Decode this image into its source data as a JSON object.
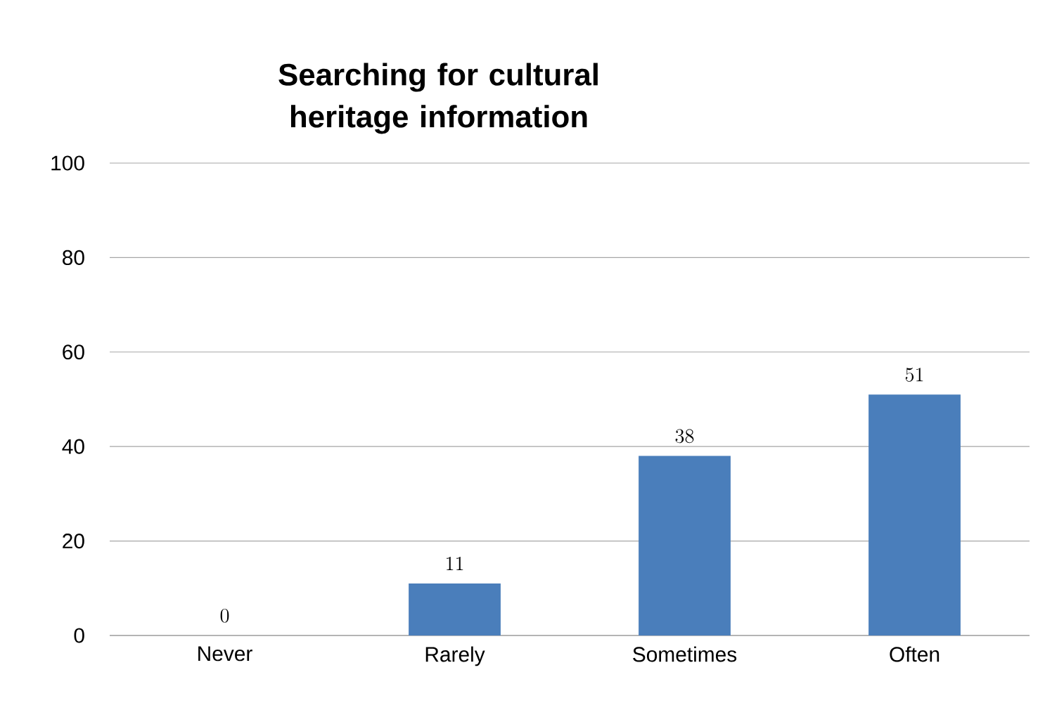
{
  "chart_data": {
    "type": "bar",
    "title": "Searching for cultural heritage information",
    "categories": [
      "Never",
      "Rarely",
      "Sometimes",
      "Often"
    ],
    "values": [
      0,
      11,
      38,
      51
    ],
    "color": "#4a7ebb",
    "ylim": [
      0,
      100
    ],
    "yticks": [
      0,
      20,
      40,
      60,
      80,
      100
    ],
    "grid": "y",
    "data_labels": true
  }
}
